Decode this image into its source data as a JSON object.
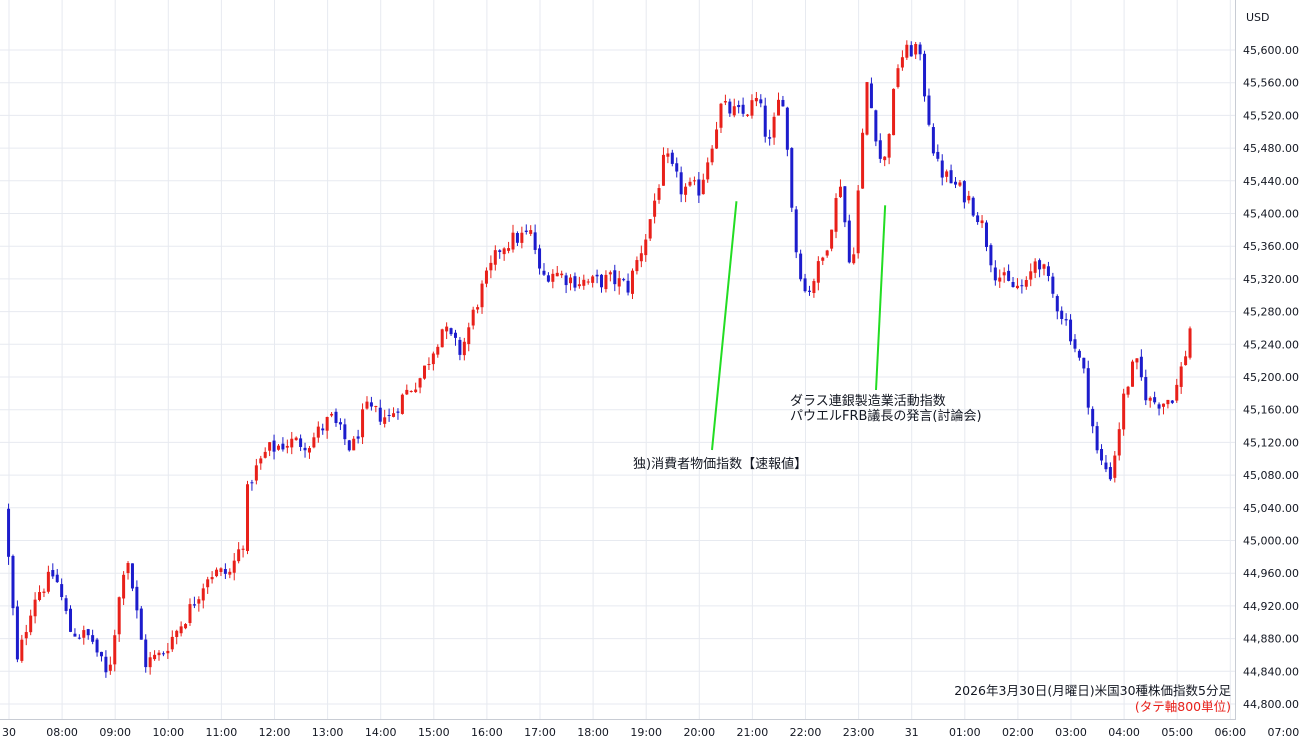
{
  "chart_data": {
    "type": "candlestick",
    "currency_label": "USD",
    "caption": "2026年3月30日(月曜日)米国30種株価指数5分足",
    "caption_sub": "(タテ軸800単位)",
    "y_ticks": [
      44800,
      44840,
      44880,
      44920,
      44960,
      45000,
      45040,
      45080,
      45120,
      45160,
      45200,
      45240,
      45280,
      45320,
      45360,
      45400,
      45440,
      45480,
      45520,
      45560,
      45600
    ],
    "y_tick_labels": [
      "44,800.00",
      "44,840.00",
      "44,880.00",
      "44,920.00",
      "44,960.00",
      "45,000.00",
      "45,040.00",
      "45,080.00",
      "45,120.00",
      "45,160.00",
      "45,200.00",
      "45,240.00",
      "45,280.00",
      "45,320.00",
      "45,360.00",
      "45,400.00",
      "45,440.00",
      "45,480.00",
      "45,520.00",
      "45,560.00",
      "45,600.00"
    ],
    "ylim": [
      44785,
      45652
    ],
    "x_ticks": [
      {
        "t": 0,
        "label": "30"
      },
      {
        "t": 1,
        "label": "08:00"
      },
      {
        "t": 2,
        "label": "09:00"
      },
      {
        "t": 3,
        "label": "10:00"
      },
      {
        "t": 4,
        "label": "11:00"
      },
      {
        "t": 5,
        "label": "12:00"
      },
      {
        "t": 6,
        "label": "13:00"
      },
      {
        "t": 7,
        "label": "14:00"
      },
      {
        "t": 8,
        "label": "15:00"
      },
      {
        "t": 9,
        "label": "16:00"
      },
      {
        "t": 10,
        "label": "17:00"
      },
      {
        "t": 11,
        "label": "18:00"
      },
      {
        "t": 12,
        "label": "19:00"
      },
      {
        "t": 13,
        "label": "20:00"
      },
      {
        "t": 14,
        "label": "21:00"
      },
      {
        "t": 15,
        "label": "22:00"
      },
      {
        "t": 16,
        "label": "23:00"
      },
      {
        "t": 17,
        "label": "31"
      },
      {
        "t": 18,
        "label": "01:00"
      },
      {
        "t": 19,
        "label": "02:00"
      },
      {
        "t": 20,
        "label": "03:00"
      },
      {
        "t": 21,
        "label": "04:00"
      },
      {
        "t": 22,
        "label": "05:00"
      },
      {
        "t": 23,
        "label": "06:00"
      },
      {
        "t": 24,
        "label": "07:00"
      }
    ],
    "up_color": "#e8201a",
    "down_color": "#1c1ccc",
    "annotation_line_color": "#22dd22",
    "annotations": [
      {
        "lines": [
          "独)消費者物価指数【速報値】"
        ],
        "t": 13.7,
        "price": 45415
      },
      {
        "lines": [
          "ダラス連銀製造業活動指数",
          "パウエルFRB議長の発言(討論会)"
        ],
        "t": 16.5,
        "price": 45410
      }
    ],
    "key_points": [
      [
        -0.05,
        45040
      ],
      [
        0.2,
        44850
      ],
      [
        0.5,
        44930
      ],
      [
        0.9,
        44960
      ],
      [
        1.2,
        44890
      ],
      [
        1.6,
        44880
      ],
      [
        1.9,
        44830
      ],
      [
        2.25,
        44990
      ],
      [
        2.6,
        44850
      ],
      [
        2.9,
        44860
      ],
      [
        3.4,
        44910
      ],
      [
        3.8,
        44960
      ],
      [
        4.2,
        44960
      ],
      [
        4.45,
        45000
      ],
      [
        4.55,
        45070
      ],
      [
        4.9,
        45110
      ],
      [
        5.3,
        45120
      ],
      [
        5.7,
        45120
      ],
      [
        6.1,
        45150
      ],
      [
        6.5,
        45110
      ],
      [
        6.75,
        45160
      ],
      [
        7.2,
        45150
      ],
      [
        7.5,
        45180
      ],
      [
        7.8,
        45200
      ],
      [
        8.2,
        45260
      ],
      [
        8.55,
        45230
      ],
      [
        8.9,
        45300
      ],
      [
        9.3,
        45360
      ],
      [
        9.6,
        45370
      ],
      [
        9.9,
        45375
      ],
      [
        10.05,
        45320
      ],
      [
        10.25,
        45330
      ],
      [
        10.6,
        45320
      ],
      [
        11.0,
        45315
      ],
      [
        11.4,
        45320
      ],
      [
        11.7,
        45310
      ],
      [
        12.05,
        45375
      ],
      [
        12.4,
        45470
      ],
      [
        12.7,
        45430
      ],
      [
        13.05,
        45430
      ],
      [
        13.45,
        45530
      ],
      [
        13.85,
        45520
      ],
      [
        14.15,
        45540
      ],
      [
        14.35,
        45480
      ],
      [
        14.6,
        45555
      ],
      [
        14.85,
        45360
      ],
      [
        15.05,
        45300
      ],
      [
        15.4,
        45350
      ],
      [
        15.7,
        45440
      ],
      [
        15.9,
        45320
      ],
      [
        16.2,
        45560
      ],
      [
        16.5,
        45450
      ],
      [
        16.8,
        45590
      ],
      [
        17.15,
        45605
      ],
      [
        17.5,
        45460
      ],
      [
        17.75,
        45440
      ],
      [
        18.1,
        45420
      ],
      [
        18.35,
        45390
      ],
      [
        18.6,
        45330
      ],
      [
        18.9,
        45310
      ],
      [
        19.2,
        45310
      ],
      [
        19.4,
        45350
      ],
      [
        19.7,
        45300
      ],
      [
        20.0,
        45260
      ],
      [
        20.3,
        45200
      ],
      [
        20.55,
        45100
      ],
      [
        20.8,
        45080
      ],
      [
        21.05,
        45180
      ],
      [
        21.25,
        45220
      ],
      [
        21.5,
        45170
      ],
      [
        21.8,
        45170
      ],
      [
        22.0,
        45180
      ],
      [
        22.2,
        45230
      ],
      [
        22.25,
        45260
      ]
    ]
  }
}
